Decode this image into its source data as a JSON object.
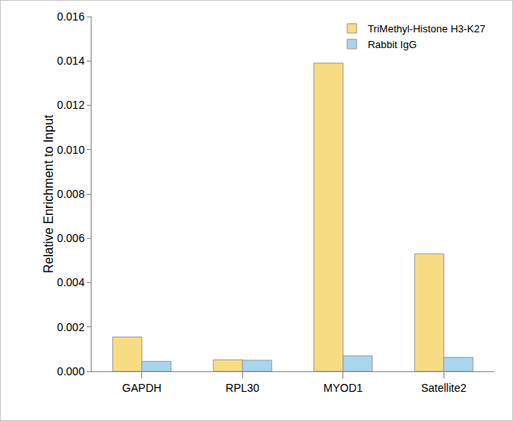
{
  "chart_data": {
    "type": "bar",
    "y_label": "Relative Enrichment to Input",
    "categories": [
      "GAPDH",
      "RPL30",
      "MYOD1",
      "Satellite2"
    ],
    "series": [
      {
        "name": "TriMethyl-Histone H3-K27",
        "color": "#f7dc84",
        "values": [
          0.00155,
          0.00052,
          0.0139,
          0.0053
        ]
      },
      {
        "name": "Rabbit IgG",
        "color": "#a9d5ee",
        "values": [
          0.00045,
          0.0005,
          0.0007,
          0.00063
        ]
      }
    ],
    "ylim": [
      0,
      0.016
    ],
    "yticks": [
      {
        "value": 0,
        "label": "0.000"
      },
      0.002,
      0.004,
      0.006,
      0.008,
      {
        "value": 0.01,
        "label": "0.010"
      },
      0.012,
      0.014,
      0.016
    ],
    "grid": false,
    "legend": "top-right"
  }
}
